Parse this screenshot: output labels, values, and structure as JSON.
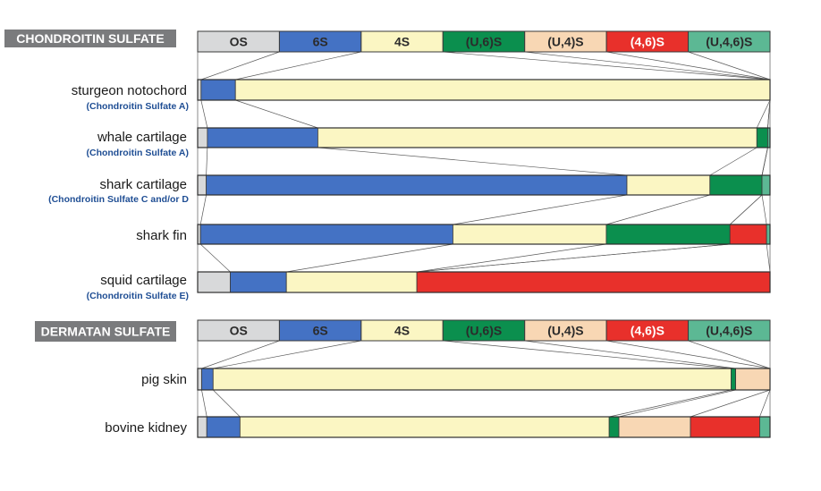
{
  "chart_data": {
    "type": "bar",
    "orientation": "horizontal",
    "stacked": true,
    "normalized_percent": true,
    "legend_position": "top",
    "grid": false,
    "groups": [
      {
        "title": "CHONDROITIN SULFATE",
        "categories": [
          "OS",
          "6S",
          "4S",
          "(U,6)S",
          "(U,4)S",
          "(4,6)S",
          "(U,4,6)S"
        ],
        "rows": [
          {
            "label": "sturgeon notochord",
            "sublabel": "(Chondroitin Sulfate A)",
            "values": [
              0.6,
              6.0,
              93.4,
              0,
              0,
              0,
              0
            ]
          },
          {
            "label": "whale cartilage",
            "sublabel": "(Chondroitin Sulfate A)",
            "values": [
              1.7,
              19.3,
              76.7,
              1.9,
              0,
              0,
              0.4
            ]
          },
          {
            "label": "shark cartilage",
            "sublabel": "(Chondroitin Sulfate C and/or D",
            "values": [
              1.5,
              73.5,
              14.5,
              9.1,
              0,
              0,
              1.4
            ]
          },
          {
            "label": "shark fin",
            "sublabel": "",
            "values": [
              0.5,
              44.1,
              26.8,
              21.6,
              0,
              6.4,
              0.6
            ]
          },
          {
            "label": "squid cartilage",
            "sublabel": "(Chondroitin Sulfate E)",
            "values": [
              5.7,
              9.8,
              22.8,
              0,
              0,
              61.7,
              0
            ]
          }
        ]
      },
      {
        "title": "DERMATAN SULFATE",
        "categories": [
          "OS",
          "6S",
          "4S",
          "(U,6)S",
          "(U,4)S",
          "(4,6)S",
          "(U,4,6)S"
        ],
        "rows": [
          {
            "label": "pig skin",
            "sublabel": "",
            "values": [
              0.7,
              2.0,
              90.5,
              0.8,
              6.0,
              0,
              0
            ]
          },
          {
            "label": "bovine kidney",
            "sublabel": "",
            "values": [
              1.6,
              5.8,
              64.5,
              1.7,
              12.5,
              12.1,
              1.8
            ]
          }
        ]
      }
    ]
  },
  "colors": {
    "OS": "#d8d9da",
    "6S": "#4472c4",
    "4S": "#fbf6c3",
    "(U,6)S": "#0b8f4e",
    "(U,4)S": "#f8d7b4",
    "(4,6)S": "#e8302b",
    "(U,4,6)S": "#5cb894",
    "title_badge": "#7a7b7d",
    "sublabel_text": "#1f4e94"
  }
}
